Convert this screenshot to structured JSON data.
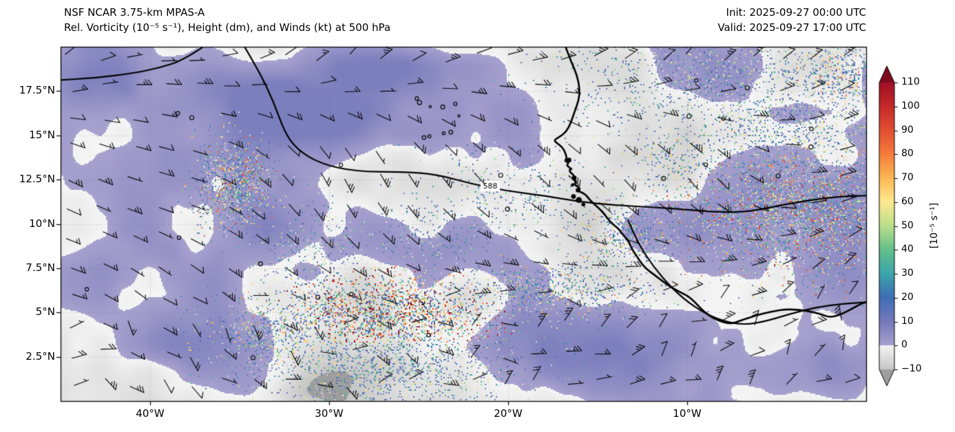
{
  "header": {
    "title_line1": "NSF NCAR 3.75-km MPAS-A",
    "title_line2": "Rel. Vorticity (10⁻⁵ s⁻¹), Height (dm), and Winds (kt) at 500 hPa",
    "init_label": "Init: 2025-09-27 00:00 UTC",
    "valid_label": "Valid: 2025-09-27 17:00 UTC"
  },
  "chart_data": {
    "type": "heatmap",
    "field": "relative-vorticity-500hPa",
    "overlays": [
      "height-contours-dm",
      "wind-barbs-kt",
      "coastlines"
    ],
    "map_extent": {
      "lon_w_range": [
        45,
        0
      ],
      "lat_n_range": [
        0,
        20
      ]
    },
    "x_axis": {
      "ticks": [
        {
          "label": "40°W",
          "lon_w": 40
        },
        {
          "label": "30°W",
          "lon_w": 30
        },
        {
          "label": "20°W",
          "lon_w": 20
        },
        {
          "label": "10°W",
          "lon_w": 10
        }
      ]
    },
    "y_axis": {
      "ticks": [
        {
          "label": "17.5°N",
          "lat_n": 17.5
        },
        {
          "label": "15°N",
          "lat_n": 15
        },
        {
          "label": "12.5°N",
          "lat_n": 12.5
        },
        {
          "label": "10°N",
          "lat_n": 10
        },
        {
          "label": "7.5°N",
          "lat_n": 7.5
        },
        {
          "label": "5°N",
          "lat_n": 5
        },
        {
          "label": "2.5°N",
          "lat_n": 2.5
        }
      ]
    },
    "colorbar": {
      "unit_label": "[10⁻⁵ s⁻¹]",
      "range": [
        -10,
        110
      ],
      "ticks": [
        {
          "label": "110",
          "v": 110
        },
        {
          "label": "100",
          "v": 100
        },
        {
          "label": "90",
          "v": 90
        },
        {
          "label": "80",
          "v": 80
        },
        {
          "label": "70",
          "v": 70
        },
        {
          "label": "60",
          "v": 60
        },
        {
          "label": "50",
          "v": 50
        },
        {
          "label": "40",
          "v": 40
        },
        {
          "label": "30",
          "v": 30
        },
        {
          "label": "20",
          "v": 20
        },
        {
          "label": "10",
          "v": 10
        },
        {
          "label": "0",
          "v": 0
        },
        {
          "label": "−10",
          "v": -10
        }
      ],
      "under_color": "#9e9e9e",
      "over_color": "#7c0b1d",
      "stops": [
        {
          "v": -10,
          "c": "#c6c6c6"
        },
        {
          "v": -0.01,
          "c": "#f5f5f5"
        },
        {
          "v": 0,
          "c": "#a8a1ce"
        },
        {
          "v": 10,
          "c": "#7579bb"
        },
        {
          "v": 20,
          "c": "#3f6db5"
        },
        {
          "v": 30,
          "c": "#3ba5ab"
        },
        {
          "v": 40,
          "c": "#62c08a"
        },
        {
          "v": 50,
          "c": "#bade8b"
        },
        {
          "v": 60,
          "c": "#fdea90"
        },
        {
          "v": 70,
          "c": "#fdb854"
        },
        {
          "v": 80,
          "c": "#f57c3c"
        },
        {
          "v": 90,
          "c": "#e24f32"
        },
        {
          "v": 100,
          "c": "#c62a2a"
        },
        {
          "v": 110,
          "c": "#9e1126"
        }
      ]
    },
    "height_contours": {
      "label": "588",
      "label_pos_lonw_lat": [
        21.0,
        12.1
      ],
      "paths_lonw_lat": [
        [
          [
            34.9,
            20.3
          ],
          [
            33.9,
            18.6
          ],
          [
            33.1,
            16.9
          ],
          [
            32.5,
            15.2
          ],
          [
            31.8,
            14.2
          ],
          [
            30.5,
            13.4
          ],
          [
            28.5,
            12.95
          ],
          [
            26.0,
            12.95
          ],
          [
            24.0,
            12.8
          ],
          [
            22.0,
            12.25
          ],
          [
            20.0,
            11.85
          ],
          [
            18.0,
            11.6
          ],
          [
            16.0,
            11.25
          ],
          [
            14.0,
            11.05
          ],
          [
            12.0,
            10.95
          ],
          [
            10.0,
            10.8
          ],
          [
            8.0,
            10.65
          ],
          [
            6.5,
            10.7
          ],
          [
            5.0,
            11.0
          ],
          [
            3.5,
            11.3
          ],
          [
            1.5,
            11.55
          ],
          [
            -0.3,
            11.6
          ]
        ],
        [
          [
            36.6,
            20.3
          ],
          [
            38.0,
            19.3
          ],
          [
            39.5,
            18.8
          ],
          [
            41.0,
            18.5
          ],
          [
            43.0,
            18.25
          ],
          [
            45.3,
            18.1
          ]
        ],
        [
          [
            13.3,
            10.2
          ],
          [
            12.8,
            9.0
          ],
          [
            11.9,
            7.6
          ],
          [
            10.8,
            6.3
          ],
          [
            9.6,
            5.3
          ],
          [
            8.3,
            4.6
          ],
          [
            7.0,
            4.3
          ],
          [
            5.8,
            4.45
          ],
          [
            4.3,
            4.9
          ],
          [
            2.8,
            5.3
          ],
          [
            1.2,
            5.5
          ],
          [
            -0.3,
            5.6
          ]
        ]
      ]
    },
    "coastline_lonw_lat": [
      [
        16.9,
        20.3
      ],
      [
        16.5,
        19.2
      ],
      [
        16.15,
        18.4
      ],
      [
        16.0,
        17.6
      ],
      [
        16.05,
        17.0
      ],
      [
        16.3,
        16.3
      ],
      [
        16.5,
        15.7
      ],
      [
        16.75,
        15.2
      ],
      [
        17.15,
        14.9
      ],
      [
        17.45,
        14.72
      ],
      [
        17.25,
        14.55
      ],
      [
        16.95,
        14.3
      ],
      [
        16.8,
        14.0
      ],
      [
        16.72,
        13.7
      ],
      [
        16.85,
        13.55
      ],
      [
        16.6,
        13.45
      ],
      [
        16.75,
        13.3
      ],
      [
        16.5,
        13.15
      ],
      [
        16.6,
        12.95
      ],
      [
        16.3,
        12.75
      ],
      [
        16.45,
        12.55
      ],
      [
        16.15,
        12.4
      ],
      [
        16.35,
        12.25
      ],
      [
        15.95,
        12.0
      ],
      [
        16.1,
        11.85
      ],
      [
        15.7,
        11.7
      ],
      [
        15.4,
        11.3
      ],
      [
        15.0,
        10.95
      ],
      [
        14.65,
        10.6
      ],
      [
        14.3,
        10.1
      ],
      [
        13.8,
        9.7
      ],
      [
        13.65,
        9.45
      ],
      [
        13.3,
        9.1
      ],
      [
        13.15,
        8.7
      ],
      [
        12.9,
        8.3
      ],
      [
        12.4,
        7.55
      ],
      [
        11.8,
        7.1
      ],
      [
        11.1,
        6.55
      ],
      [
        10.5,
        6.2
      ],
      [
        9.8,
        5.85
      ],
      [
        9.0,
        4.95
      ],
      [
        8.2,
        4.5
      ],
      [
        7.55,
        4.35
      ],
      [
        7.0,
        4.55
      ],
      [
        6.1,
        4.85
      ],
      [
        5.3,
        5.05
      ],
      [
        4.4,
        5.2
      ],
      [
        3.3,
        5.1
      ],
      [
        2.5,
        4.9
      ],
      [
        2.05,
        4.72
      ],
      [
        1.5,
        4.85
      ],
      [
        0.8,
        5.2
      ],
      [
        0.2,
        5.55
      ],
      [
        -0.3,
        5.65
      ]
    ],
    "coast_estuary_blobs_lonw_lat": [
      [
        16.6,
        13.6
      ],
      [
        16.5,
        13.1
      ],
      [
        16.3,
        12.6
      ],
      [
        16.4,
        12.2
      ],
      [
        16.1,
        11.9
      ],
      [
        16.35,
        11.55
      ],
      [
        16.05,
        11.35
      ],
      [
        15.8,
        11.1
      ]
    ],
    "cape_verde_islands_lonw_lat": [
      [
        25.1,
        17.08
      ],
      [
        24.95,
        16.85
      ],
      [
        24.35,
        16.62
      ],
      [
        23.65,
        16.6
      ],
      [
        22.95,
        16.78
      ],
      [
        22.75,
        16.1
      ],
      [
        23.6,
        15.12
      ],
      [
        23.2,
        15.18
      ],
      [
        24.4,
        14.95
      ],
      [
        24.7,
        14.87
      ]
    ],
    "vorticity_texture": {
      "smooth_regions": [
        [
          43,
          18.3,
          3.5,
          2.6,
          7
        ],
        [
          33.5,
          17.3,
          3,
          2.4,
          6
        ],
        [
          22.5,
          8.7,
          6,
          2.3,
          7.5
        ],
        [
          29.5,
          15.8,
          2.2,
          1.6,
          5
        ],
        [
          8,
          17,
          6,
          3,
          5
        ],
        [
          3.5,
          10.8,
          5,
          3.4,
          6.5
        ],
        [
          17,
          1.6,
          4,
          1.9,
          5
        ],
        [
          38.5,
          3.2,
          3.5,
          2,
          4
        ],
        [
          26,
          19,
          4,
          1.5,
          5
        ],
        [
          12,
          2.8,
          3,
          1.8,
          4
        ],
        [
          33,
          9.8,
          2.5,
          1.8,
          5
        ],
        [
          22,
          3.5,
          3,
          1.8,
          4
        ],
        [
          2.5,
          2.5,
          3,
          2,
          4
        ],
        [
          28,
          18.8,
          2.5,
          1.5,
          4.5
        ]
      ],
      "speckle_regions": [
        [
          27,
          5.0,
          5.5,
          1.8,
          0.55,
          110
        ],
        [
          32.5,
          4.0,
          3.5,
          1.8,
          0.35,
          70
        ],
        [
          27,
          2.2,
          6,
          2.2,
          0.28,
          60
        ],
        [
          17.5,
          6.3,
          4.5,
          1.4,
          0.3,
          70
        ],
        [
          35.3,
          12.3,
          1.7,
          2.1,
          0.5,
          85
        ],
        [
          3.5,
          11,
          5.5,
          3,
          0.38,
          90
        ],
        [
          5,
          15.5,
          5,
          2.2,
          0.22,
          60
        ],
        [
          8,
          18.2,
          7,
          2.4,
          0.18,
          55
        ],
        [
          13.5,
          9.5,
          2.2,
          1.6,
          0.3,
          70
        ],
        [
          1.5,
          18.5,
          3,
          2,
          0.3,
          80
        ],
        [
          20,
          12,
          4,
          2,
          0.1,
          50
        ],
        [
          10.5,
          13.7,
          2.2,
          1.6,
          0.22,
          70
        ],
        [
          31,
          8.5,
          3,
          2,
          0.12,
          50
        ],
        [
          24,
          9.5,
          3,
          2,
          0.1,
          45
        ]
      ]
    },
    "wind_barbs": {
      "prevailing": "easterly",
      "speed_range_kt": [
        5,
        25
      ],
      "grid_cols": 26,
      "grid_rows": 12
    }
  }
}
